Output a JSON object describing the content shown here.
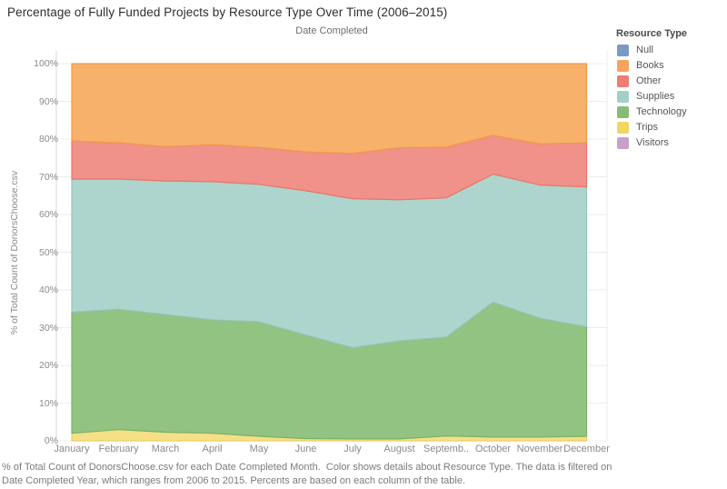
{
  "title": "Percentage of Fully Funded Projects by Resource Type Over Time (2006–2015)",
  "axes": {
    "x_title": "Date Completed",
    "y_title": "% of Total Count of DonorsChoose.csv",
    "x_tick_labels": [
      "January",
      "February",
      "March",
      "April",
      "May",
      "June",
      "July",
      "August",
      "Septemb..",
      "October",
      "November",
      "December"
    ],
    "y_tick_labels": [
      "0%",
      "10%",
      "20%",
      "30%",
      "40%",
      "50%",
      "60%",
      "70%",
      "80%",
      "90%",
      "100%"
    ]
  },
  "legend": {
    "title": "Resource Type",
    "items": [
      {
        "label": "Null",
        "color": "#7a9ac5"
      },
      {
        "label": "Books",
        "color": "#f5a45d"
      },
      {
        "label": "Other",
        "color": "#ee7d72"
      },
      {
        "label": "Supplies",
        "color": "#a3cfc6"
      },
      {
        "label": "Technology",
        "color": "#88ba78"
      },
      {
        "label": "Trips",
        "color": "#f3d562"
      },
      {
        "label": "Visitors",
        "color": "#c6a2c8"
      }
    ]
  },
  "caption": {
    "line1": "% of Total Count of DonorsChoose.csv for each Date Completed Month.  Color shows details about Resource Type. The data is filtered on",
    "line2": "Date Completed Year, which ranges from 2006 to 2015. Percents are based on each column of the table."
  },
  "chart_data": {
    "type": "area",
    "stacked": true,
    "title": "Percentage of Fully Funded Projects by Resource Type Over Time (2006–2015)",
    "xlabel": "Date Completed",
    "ylabel": "% of Total Count of DonorsChoose.csv",
    "ylim": [
      0,
      100
    ],
    "grid": true,
    "legend_position": "right",
    "x": [
      "January",
      "February",
      "March",
      "April",
      "May",
      "June",
      "July",
      "August",
      "September",
      "October",
      "November",
      "December"
    ],
    "series": [
      {
        "name": "Visitors",
        "fill": "#cfaed1",
        "stroke": "#b98fbc",
        "values": [
          0,
          0,
          0,
          0,
          0,
          0,
          0,
          0,
          0,
          0,
          0,
          0
        ]
      },
      {
        "name": "Trips",
        "fill": "#f5df87",
        "stroke": "#ecd066",
        "values": [
          2.0,
          3.0,
          2.3,
          2.0,
          1.2,
          0.6,
          0.5,
          0.5,
          1.3,
          1.0,
          1.0,
          1.2
        ]
      },
      {
        "name": "Technology",
        "fill": "#92c383",
        "stroke": "#79b167",
        "values": [
          32.1,
          31.9,
          31.2,
          30.1,
          30.4,
          27.5,
          24.2,
          26.0,
          26.2,
          35.8,
          31.5,
          29.1
        ]
      },
      {
        "name": "Supplies",
        "fill": "#aed5cd",
        "stroke": "#93c6ba",
        "values": [
          35.3,
          34.5,
          35.4,
          36.6,
          36.4,
          38.2,
          39.5,
          37.4,
          36.9,
          33.9,
          35.3,
          37.0
        ]
      },
      {
        "name": "Other",
        "fill": "#f0918a",
        "stroke": "#e97567",
        "values": [
          10.1,
          9.6,
          9.1,
          9.8,
          9.8,
          10.3,
          12.0,
          13.8,
          13.5,
          10.3,
          10.9,
          11.7
        ]
      },
      {
        "name": "Books",
        "fill": "#f7b16a",
        "stroke": "#f09a48",
        "values": [
          20.5,
          21.0,
          22.0,
          21.5,
          22.2,
          23.4,
          23.8,
          22.3,
          22.1,
          19.0,
          21.3,
          21.0
        ]
      },
      {
        "name": "Null",
        "fill": "#9db8d8",
        "stroke": "#7a9ac5",
        "values": [
          0,
          0,
          0,
          0,
          0,
          0,
          0,
          0,
          0,
          0,
          0,
          0
        ]
      }
    ]
  }
}
